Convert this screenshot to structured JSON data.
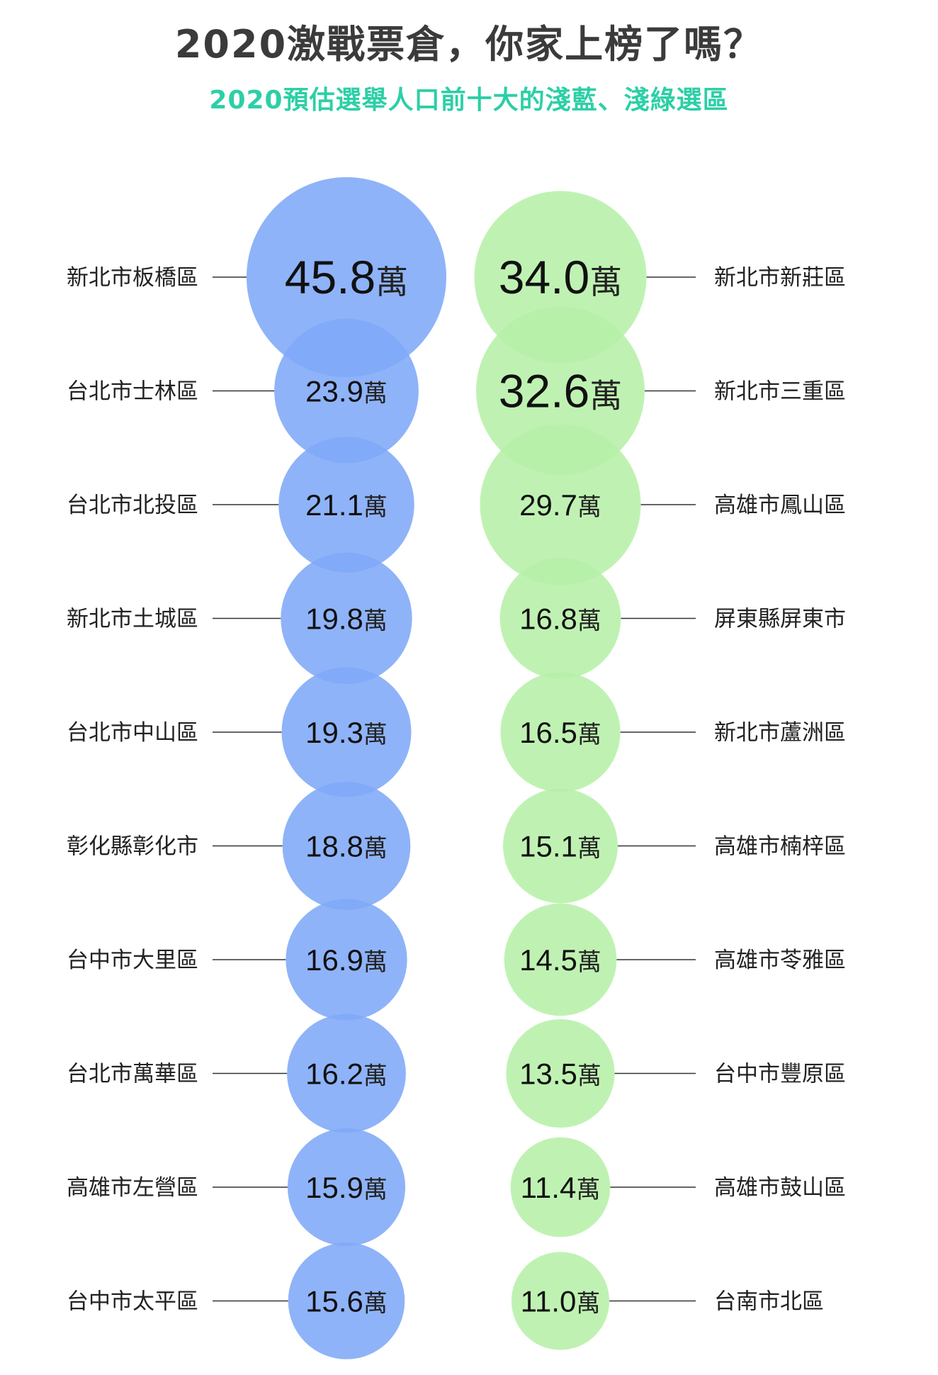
{
  "title": "2020激戰票倉，你家上榜了嗎？",
  "subtitle": "2020預估選舉人口前十大的淺藍、淺綠選區",
  "unit": "萬",
  "colors": {
    "blue": "#7fa9f7",
    "green": "#b6f0a7",
    "title": "#3b3b3b",
    "subtitle": "#2ccfa6"
  },
  "chart_data": {
    "type": "bubble",
    "title": "2020預估選舉人口前十大的淺藍、淺綠選區",
    "series": [
      {
        "side": "left",
        "color": "#7fa9f7",
        "items": [
          {
            "district": "新北市板橋區",
            "value": 45.8
          },
          {
            "district": "台北市士林區",
            "value": 23.9
          },
          {
            "district": "台北市北投區",
            "value": 21.1
          },
          {
            "district": "新北市土城區",
            "value": 19.8
          },
          {
            "district": "台北市中山區",
            "value": 19.3
          },
          {
            "district": "彰化縣彰化市",
            "value": 18.8
          },
          {
            "district": "台中市大里區",
            "value": 16.9
          },
          {
            "district": "台北市萬華區",
            "value": 16.2
          },
          {
            "district": "高雄市左營區",
            "value": 15.9
          },
          {
            "district": "台中市太平區",
            "value": 15.6
          }
        ]
      },
      {
        "side": "right",
        "color": "#b6f0a7",
        "items": [
          {
            "district": "新北市新莊區",
            "value": 34.0
          },
          {
            "district": "新北市三重區",
            "value": 32.6
          },
          {
            "district": "高雄市鳳山區",
            "value": 29.7
          },
          {
            "district": "屏東縣屏東市",
            "value": 16.8
          },
          {
            "district": "新北市蘆洲區",
            "value": 16.5
          },
          {
            "district": "高雄市楠梓區",
            "value": 15.1
          },
          {
            "district": "高雄市苓雅區",
            "value": 14.5
          },
          {
            "district": "台中市豐原區",
            "value": 13.5
          },
          {
            "district": "高雄市鼓山區",
            "value": 11.4
          },
          {
            "district": "台南市北區",
            "value": 11.0
          }
        ]
      }
    ]
  }
}
